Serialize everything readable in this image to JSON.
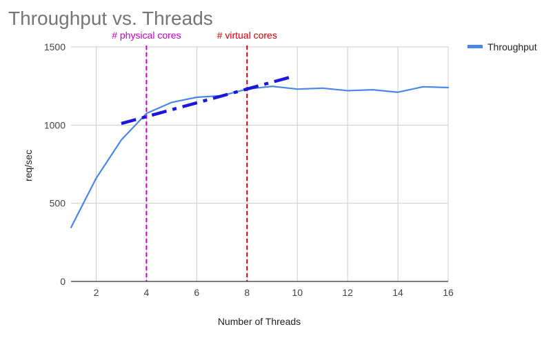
{
  "chart_data": {
    "type": "line",
    "title": "Throughput vs. Threads",
    "xlabel": "Number of Threads",
    "ylabel": "req/sec",
    "xlim": [
      1,
      16
    ],
    "ylim": [
      0,
      1500
    ],
    "xticks": [
      2,
      4,
      6,
      8,
      10,
      12,
      14,
      16
    ],
    "yticks": [
      0,
      500,
      1000,
      1500
    ],
    "grid": true,
    "legend_position": "top-right",
    "series": [
      {
        "name": "Throughput",
        "color": "#4a86e8",
        "x": [
          1,
          2,
          3,
          4,
          5,
          6,
          7,
          8,
          9,
          10,
          11,
          12,
          13,
          14,
          15,
          16
        ],
        "values": [
          345,
          660,
          905,
          1075,
          1145,
          1178,
          1188,
          1230,
          1248,
          1230,
          1236,
          1220,
          1226,
          1210,
          1245,
          1240
        ]
      }
    ],
    "trend_line": {
      "color": "#1a17d9",
      "x": [
        3,
        9.8
      ],
      "values": [
        1010,
        1310
      ]
    },
    "annotations": [
      {
        "label": "# physical cores",
        "x": 4,
        "color": "#cc00cc"
      },
      {
        "label": "# virtual cores",
        "x": 8,
        "color": "#cc0000"
      }
    ]
  }
}
